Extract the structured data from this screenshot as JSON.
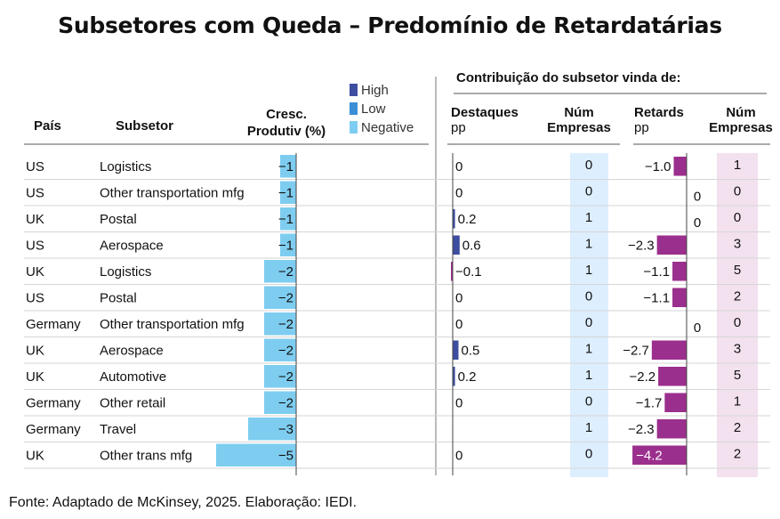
{
  "title": "Subsetores com Queda – Predomínio de Retardatárias",
  "legend": [
    {
      "label": "High",
      "color": "#3d4ea0"
    },
    {
      "label": "Low",
      "color": "#3a8fd6"
    },
    {
      "label": "Negative",
      "color": "#7ecdf0"
    }
  ],
  "headers": {
    "pais": "País",
    "subsetor": "Subsetor",
    "cresc_line1": "Cresc.",
    "cresc_line2": "Produtiv (%)",
    "contrib": "Contribuição do subsetor vinda de:",
    "destaques": "Destaques",
    "destaques_unit": "pp",
    "num1_line1": "Núm",
    "num1_line2": "Empresas",
    "retards": "Retards",
    "retards_unit": "pp",
    "num2_line1": "Núm",
    "num2_line2": "Empresas"
  },
  "source": "Fonte: Adaptado de McKinsey, 2025. Elaboração: IEDI.",
  "chart_data": {
    "type": "table",
    "columns": [
      "País",
      "Subsetor",
      "Cresc. Produtiv (%)",
      "Destaques pp",
      "Núm Empresas",
      "Retards pp",
      "Núm Empresas"
    ],
    "rows": [
      {
        "pais": "US",
        "subsetor": "Logistics",
        "cresc": -1,
        "cresc_label": "−1",
        "dest": 0,
        "dest_label": "0",
        "num1": "0",
        "ret": -1.0,
        "ret_label": "−1.0",
        "num2": "1"
      },
      {
        "pais": "US",
        "subsetor": "Other transportation mfg",
        "cresc": -1,
        "cresc_label": "−1",
        "dest": 0,
        "dest_label": "0",
        "num1": "0",
        "ret": 0,
        "ret_label": "0",
        "num2": "0"
      },
      {
        "pais": "UK",
        "subsetor": "Postal",
        "cresc": -1,
        "cresc_label": "−1",
        "dest": 0.2,
        "dest_label": "0.2",
        "num1": "1",
        "ret": 0,
        "ret_label": "0",
        "num2": "0"
      },
      {
        "pais": "US",
        "subsetor": "Aerospace",
        "cresc": -1,
        "cresc_label": "−1",
        "dest": 0.6,
        "dest_label": "0.6",
        "num1": "1",
        "ret": -2.3,
        "ret_label": "−2.3",
        "num2": "3"
      },
      {
        "pais": "UK",
        "subsetor": "Logistics",
        "cresc": -2,
        "cresc_label": "−2",
        "dest": -0.1,
        "dest_label": "−0.1",
        "num1": "1",
        "ret": -1.1,
        "ret_label": "−1.1",
        "num2": "5"
      },
      {
        "pais": "US",
        "subsetor": "Postal",
        "cresc": -2,
        "cresc_label": "−2",
        "dest": 0,
        "dest_label": "0",
        "num1": "0",
        "ret": -1.1,
        "ret_label": "−1.1",
        "num2": "2"
      },
      {
        "pais": "Germany",
        "subsetor": "Other transportation mfg",
        "cresc": -2,
        "cresc_label": "−2",
        "dest": 0,
        "dest_label": "0",
        "num1": "0",
        "ret": 0,
        "ret_label": "0",
        "num2": "0"
      },
      {
        "pais": "UK",
        "subsetor": "Aerospace",
        "cresc": -2,
        "cresc_label": "−2",
        "dest": 0.5,
        "dest_label": "0.5",
        "num1": "1",
        "ret": -2.7,
        "ret_label": "−2.7",
        "num2": "3"
      },
      {
        "pais": "UK",
        "subsetor": "Automotive",
        "cresc": -2,
        "cresc_label": "−2",
        "dest": 0.2,
        "dest_label": "0.2",
        "num1": "1",
        "ret": -2.2,
        "ret_label": "−2.2",
        "num2": "5"
      },
      {
        "pais": "Germany",
        "subsetor": "Other retail",
        "cresc": -2,
        "cresc_label": "−2",
        "dest": 0,
        "dest_label": "0",
        "num1": "0",
        "ret": -1.7,
        "ret_label": "−1.7",
        "num2": "1"
      },
      {
        "pais": "Germany",
        "subsetor": "Travel",
        "cresc": -3,
        "cresc_label": "−3",
        "dest": null,
        "dest_label": "",
        "num1": "1",
        "ret": -2.3,
        "ret_label": "−2.3",
        "num2": "2"
      },
      {
        "pais": "UK",
        "subsetor": "Other trans mfg",
        "cresc": -5,
        "cresc_label": "−5",
        "dest": 0,
        "dest_label": "0",
        "num1": "0",
        "ret": -4.2,
        "ret_label": "−4.2",
        "num2": "2"
      }
    ]
  }
}
